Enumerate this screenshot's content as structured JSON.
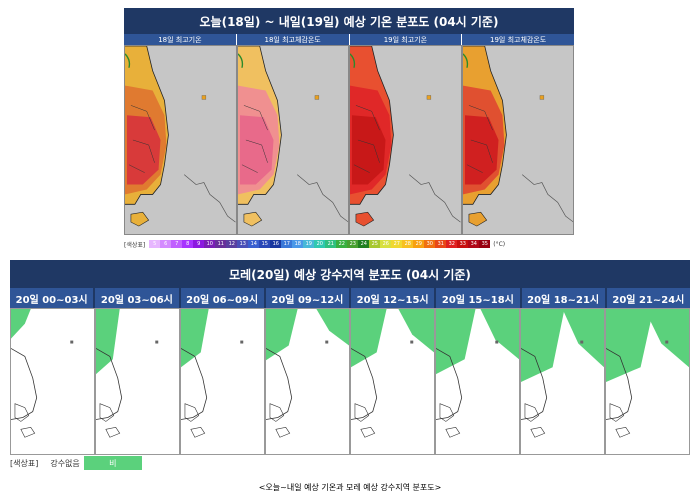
{
  "top": {
    "title": "오늘(18일) ~ 내일(19일) 예상 기온 분포도 (04시 기준)",
    "maps": [
      {
        "label": "18일 최고기온",
        "heat": "mid"
      },
      {
        "label": "18일 최고체감온도",
        "heat": "pink"
      },
      {
        "label": "19일 최고기온",
        "heat": "high"
      },
      {
        "label": "19일 최고체감온도",
        "heat": "mid-high"
      }
    ],
    "legend": {
      "title": "[색상표]",
      "unit": "(°C)",
      "values": [
        "5",
        "6",
        "7",
        "8",
        "9",
        "10",
        "11",
        "12",
        "13",
        "14",
        "15",
        "16",
        "17",
        "18",
        "19",
        "20",
        "21",
        "22",
        "23",
        "24",
        "25",
        "26",
        "27",
        "28",
        "29",
        "30",
        "31",
        "32",
        "33",
        "34",
        "35"
      ],
      "colors": [
        "#e7b6ff",
        "#d48bff",
        "#c060ff",
        "#a733ff",
        "#8c19e0",
        "#7a1fb5",
        "#68309a",
        "#5a3fa0",
        "#4a50b8",
        "#3a60d0",
        "#2a48b8",
        "#1a38a0",
        "#3a78d8",
        "#4a98e8",
        "#48b8d8",
        "#30c8b0",
        "#30c080",
        "#38b040",
        "#48a030",
        "#208020",
        "#a8c830",
        "#d8e040",
        "#f0d830",
        "#f8c020",
        "#f8a010",
        "#f07010",
        "#e84818",
        "#e02020",
        "#c81010",
        "#b00818",
        "#980010"
      ]
    }
  },
  "bottom": {
    "title": "모레(20일) 예상 강수지역 분포도 (04시 기준)",
    "times": [
      {
        "label": "20일 00~03시",
        "coverage": 0.1
      },
      {
        "label": "20일 03~06시",
        "coverage": 0.35
      },
      {
        "label": "20일 06~09시",
        "coverage": 0.3
      },
      {
        "label": "20일 09~12시",
        "coverage": 0.25
      },
      {
        "label": "20일 12~15시",
        "coverage": 0.3
      },
      {
        "label": "20일 15~18시",
        "coverage": 0.35
      },
      {
        "label": "20일 18~21시",
        "coverage": 0.4
      },
      {
        "label": "20일 21~24시",
        "coverage": 0.4
      }
    ],
    "legend": {
      "title": "[색상표]",
      "none_label": "강수없음",
      "rain_label": "비",
      "rain_color": "#5bd17c"
    }
  },
  "caption": "<오늘~내일 예상 기온과 모레 예상 강수지역 분포도>"
}
